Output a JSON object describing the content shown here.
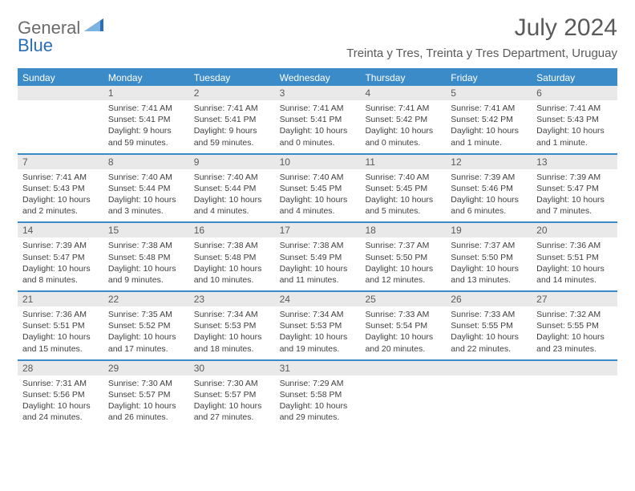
{
  "logo": {
    "general": "General",
    "blue": "Blue"
  },
  "title": {
    "month": "July 2024",
    "location": "Treinta y Tres, Treinta y Tres Department, Uruguay"
  },
  "colors": {
    "header_bg": "#3b8bc9",
    "header_text": "#ffffff",
    "daynum_bg": "#e9e9e9",
    "text": "#404040",
    "title_text": "#5a5a5a"
  },
  "typography": {
    "month_fontsize": 30,
    "location_fontsize": 15,
    "dayhead_fontsize": 12,
    "daynum_fontsize": 12,
    "body_fontsize": 10.5
  },
  "dayheads": [
    "Sunday",
    "Monday",
    "Tuesday",
    "Wednesday",
    "Thursday",
    "Friday",
    "Saturday"
  ],
  "weeks": [
    [
      {
        "n": "",
        "sr": "",
        "ss": "",
        "dl": ""
      },
      {
        "n": "1",
        "sr": "Sunrise: 7:41 AM",
        "ss": "Sunset: 5:41 PM",
        "dl": "Daylight: 9 hours and 59 minutes."
      },
      {
        "n": "2",
        "sr": "Sunrise: 7:41 AM",
        "ss": "Sunset: 5:41 PM",
        "dl": "Daylight: 9 hours and 59 minutes."
      },
      {
        "n": "3",
        "sr": "Sunrise: 7:41 AM",
        "ss": "Sunset: 5:41 PM",
        "dl": "Daylight: 10 hours and 0 minutes."
      },
      {
        "n": "4",
        "sr": "Sunrise: 7:41 AM",
        "ss": "Sunset: 5:42 PM",
        "dl": "Daylight: 10 hours and 0 minutes."
      },
      {
        "n": "5",
        "sr": "Sunrise: 7:41 AM",
        "ss": "Sunset: 5:42 PM",
        "dl": "Daylight: 10 hours and 1 minute."
      },
      {
        "n": "6",
        "sr": "Sunrise: 7:41 AM",
        "ss": "Sunset: 5:43 PM",
        "dl": "Daylight: 10 hours and 1 minute."
      }
    ],
    [
      {
        "n": "7",
        "sr": "Sunrise: 7:41 AM",
        "ss": "Sunset: 5:43 PM",
        "dl": "Daylight: 10 hours and 2 minutes."
      },
      {
        "n": "8",
        "sr": "Sunrise: 7:40 AM",
        "ss": "Sunset: 5:44 PM",
        "dl": "Daylight: 10 hours and 3 minutes."
      },
      {
        "n": "9",
        "sr": "Sunrise: 7:40 AM",
        "ss": "Sunset: 5:44 PM",
        "dl": "Daylight: 10 hours and 4 minutes."
      },
      {
        "n": "10",
        "sr": "Sunrise: 7:40 AM",
        "ss": "Sunset: 5:45 PM",
        "dl": "Daylight: 10 hours and 4 minutes."
      },
      {
        "n": "11",
        "sr": "Sunrise: 7:40 AM",
        "ss": "Sunset: 5:45 PM",
        "dl": "Daylight: 10 hours and 5 minutes."
      },
      {
        "n": "12",
        "sr": "Sunrise: 7:39 AM",
        "ss": "Sunset: 5:46 PM",
        "dl": "Daylight: 10 hours and 6 minutes."
      },
      {
        "n": "13",
        "sr": "Sunrise: 7:39 AM",
        "ss": "Sunset: 5:47 PM",
        "dl": "Daylight: 10 hours and 7 minutes."
      }
    ],
    [
      {
        "n": "14",
        "sr": "Sunrise: 7:39 AM",
        "ss": "Sunset: 5:47 PM",
        "dl": "Daylight: 10 hours and 8 minutes."
      },
      {
        "n": "15",
        "sr": "Sunrise: 7:38 AM",
        "ss": "Sunset: 5:48 PM",
        "dl": "Daylight: 10 hours and 9 minutes."
      },
      {
        "n": "16",
        "sr": "Sunrise: 7:38 AM",
        "ss": "Sunset: 5:48 PM",
        "dl": "Daylight: 10 hours and 10 minutes."
      },
      {
        "n": "17",
        "sr": "Sunrise: 7:38 AM",
        "ss": "Sunset: 5:49 PM",
        "dl": "Daylight: 10 hours and 11 minutes."
      },
      {
        "n": "18",
        "sr": "Sunrise: 7:37 AM",
        "ss": "Sunset: 5:50 PM",
        "dl": "Daylight: 10 hours and 12 minutes."
      },
      {
        "n": "19",
        "sr": "Sunrise: 7:37 AM",
        "ss": "Sunset: 5:50 PM",
        "dl": "Daylight: 10 hours and 13 minutes."
      },
      {
        "n": "20",
        "sr": "Sunrise: 7:36 AM",
        "ss": "Sunset: 5:51 PM",
        "dl": "Daylight: 10 hours and 14 minutes."
      }
    ],
    [
      {
        "n": "21",
        "sr": "Sunrise: 7:36 AM",
        "ss": "Sunset: 5:51 PM",
        "dl": "Daylight: 10 hours and 15 minutes."
      },
      {
        "n": "22",
        "sr": "Sunrise: 7:35 AM",
        "ss": "Sunset: 5:52 PM",
        "dl": "Daylight: 10 hours and 17 minutes."
      },
      {
        "n": "23",
        "sr": "Sunrise: 7:34 AM",
        "ss": "Sunset: 5:53 PM",
        "dl": "Daylight: 10 hours and 18 minutes."
      },
      {
        "n": "24",
        "sr": "Sunrise: 7:34 AM",
        "ss": "Sunset: 5:53 PM",
        "dl": "Daylight: 10 hours and 19 minutes."
      },
      {
        "n": "25",
        "sr": "Sunrise: 7:33 AM",
        "ss": "Sunset: 5:54 PM",
        "dl": "Daylight: 10 hours and 20 minutes."
      },
      {
        "n": "26",
        "sr": "Sunrise: 7:33 AM",
        "ss": "Sunset: 5:55 PM",
        "dl": "Daylight: 10 hours and 22 minutes."
      },
      {
        "n": "27",
        "sr": "Sunrise: 7:32 AM",
        "ss": "Sunset: 5:55 PM",
        "dl": "Daylight: 10 hours and 23 minutes."
      }
    ],
    [
      {
        "n": "28",
        "sr": "Sunrise: 7:31 AM",
        "ss": "Sunset: 5:56 PM",
        "dl": "Daylight: 10 hours and 24 minutes."
      },
      {
        "n": "29",
        "sr": "Sunrise: 7:30 AM",
        "ss": "Sunset: 5:57 PM",
        "dl": "Daylight: 10 hours and 26 minutes."
      },
      {
        "n": "30",
        "sr": "Sunrise: 7:30 AM",
        "ss": "Sunset: 5:57 PM",
        "dl": "Daylight: 10 hours and 27 minutes."
      },
      {
        "n": "31",
        "sr": "Sunrise: 7:29 AM",
        "ss": "Sunset: 5:58 PM",
        "dl": "Daylight: 10 hours and 29 minutes."
      },
      {
        "n": "",
        "sr": "",
        "ss": "",
        "dl": ""
      },
      {
        "n": "",
        "sr": "",
        "ss": "",
        "dl": ""
      },
      {
        "n": "",
        "sr": "",
        "ss": "",
        "dl": ""
      }
    ]
  ]
}
